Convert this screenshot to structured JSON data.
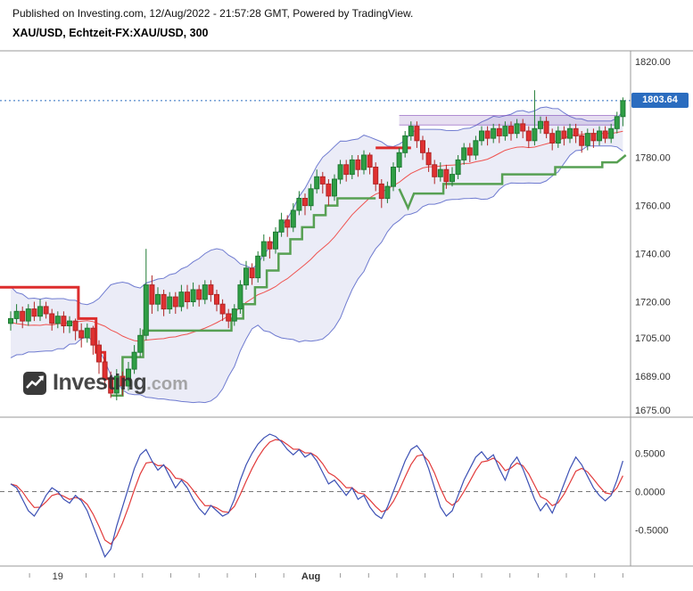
{
  "header": {
    "published_line": "Published on Investing.com, 12/Aug/2022 - 21:57:28 GMT, Powered by TradingView.",
    "symbol_line": "XAU/USD, Echtzeit-FX:XAU/USD, 300"
  },
  "watermark": {
    "brand_bold": "Investing",
    "brand_suffix": ".com"
  },
  "price_axis": {
    "last_price_label": "1803.64",
    "ticks": [
      {
        "label": "1820.00",
        "value": 1820
      },
      {
        "label": "1780.00",
        "value": 1780
      },
      {
        "label": "1760.00",
        "value": 1760
      },
      {
        "label": "1740.00",
        "value": 1740
      },
      {
        "label": "1720.00",
        "value": 1720
      },
      {
        "label": "1705.00",
        "value": 1705
      },
      {
        "label": "1689.00",
        "value": 1689
      },
      {
        "label": "1675.00",
        "value": 1675
      }
    ]
  },
  "osc_axis": {
    "ticks": [
      {
        "label": "0.5000",
        "value": 0.5
      },
      {
        "label": "0.0000",
        "value": 0.0
      },
      {
        "label": "-0.5000",
        "value": -0.5
      }
    ]
  },
  "time_axis": {
    "labels": [
      {
        "text": "19",
        "bar": 8,
        "bold": false
      },
      {
        "text": "Aug",
        "bar": 51,
        "bold": true
      }
    ],
    "first_tick_bar": 3.2,
    "minor_tick_step_bars": 4.8
  },
  "colors": {
    "up": "#2f9e45",
    "up_border": "#1e7a33",
    "down": "#e03131",
    "down_border": "#b02525",
    "band_line": "#6f7bd0",
    "band_fill": "rgba(110,118,200,0.14)",
    "band_basis": "#ef5350",
    "st_red": "#dd2c2c",
    "st_green": "#57a053",
    "osc_blue": "#3c50b4",
    "osc_red": "#e23b3b",
    "zone_fill": "rgba(120,80,180,0.18)",
    "zone_line": "rgba(120,60,180,0.55)",
    "badge": "#2a6cbf",
    "axis_line": "#9a9a9a",
    "zero_line": "#777777"
  },
  "chart_data": [
    {
      "pane": "main",
      "type": "candlestick",
      "title": "XAU/USD, Echtzeit-FX:XAU/USD, 300",
      "symbol": "XAU/USD",
      "interval_minutes": 300,
      "last_price": 1803.64,
      "ylim": [
        1672,
        1824
      ],
      "bollinger": {
        "period": 20,
        "stddev": 2
      },
      "pre_closes": [
        1722,
        1728,
        1718,
        1725,
        1712,
        1720,
        1708,
        1715,
        1703,
        1710,
        1700,
        1707,
        1698,
        1705,
        1709,
        1715,
        1707,
        1713,
        1710,
        1714
      ],
      "candles_ohlc": [
        [
          1711,
          1716,
          1708,
          1713
        ],
        [
          1713,
          1719,
          1711,
          1716
        ],
        [
          1716,
          1718,
          1709,
          1712
        ],
        [
          1712,
          1719,
          1710,
          1717
        ],
        [
          1717,
          1720,
          1712,
          1714
        ],
        [
          1714,
          1721,
          1712,
          1718
        ],
        [
          1718,
          1720,
          1713,
          1715
        ],
        [
          1715,
          1717,
          1708,
          1711
        ],
        [
          1711,
          1716,
          1709,
          1714
        ],
        [
          1714,
          1716,
          1707,
          1710
        ],
        [
          1710,
          1714,
          1707,
          1712
        ],
        [
          1712,
          1713,
          1704,
          1708
        ],
        [
          1708,
          1711,
          1701,
          1705
        ],
        [
          1705,
          1711,
          1703,
          1709
        ],
        [
          1709,
          1710,
          1698,
          1702
        ],
        [
          1702,
          1704,
          1690,
          1695
        ],
        [
          1695,
          1697,
          1684,
          1688
        ],
        [
          1688,
          1691,
          1680,
          1682
        ],
        [
          1682,
          1692,
          1679,
          1689
        ],
        [
          1689,
          1691,
          1681,
          1685
        ],
        [
          1685,
          1695,
          1683,
          1692
        ],
        [
          1692,
          1702,
          1690,
          1699
        ],
        [
          1699,
          1709,
          1697,
          1706
        ],
        [
          1706,
          1742,
          1704,
          1727
        ],
        [
          1727,
          1731,
          1715,
          1719
        ],
        [
          1719,
          1726,
          1716,
          1723
        ],
        [
          1723,
          1725,
          1714,
          1717
        ],
        [
          1717,
          1724,
          1715,
          1722
        ],
        [
          1722,
          1724,
          1715,
          1718
        ],
        [
          1718,
          1727,
          1716,
          1724
        ],
        [
          1724,
          1727,
          1717,
          1720
        ],
        [
          1720,
          1728,
          1718,
          1725
        ],
        [
          1725,
          1727,
          1718,
          1721
        ],
        [
          1721,
          1729,
          1719,
          1727
        ],
        [
          1727,
          1729,
          1720,
          1723
        ],
        [
          1723,
          1725,
          1716,
          1719
        ],
        [
          1719,
          1721,
          1712,
          1715
        ],
        [
          1715,
          1717,
          1709,
          1712
        ],
        [
          1712,
          1719,
          1710,
          1717
        ],
        [
          1717,
          1729,
          1715,
          1727
        ],
        [
          1727,
          1737,
          1725,
          1734
        ],
        [
          1734,
          1736,
          1727,
          1730
        ],
        [
          1730,
          1741,
          1728,
          1739
        ],
        [
          1739,
          1748,
          1737,
          1745
        ],
        [
          1745,
          1747,
          1738,
          1742
        ],
        [
          1742,
          1751,
          1740,
          1749
        ],
        [
          1749,
          1757,
          1747,
          1754
        ],
        [
          1754,
          1756,
          1747,
          1751
        ],
        [
          1751,
          1761,
          1749,
          1758
        ],
        [
          1758,
          1766,
          1756,
          1763
        ],
        [
          1763,
          1765,
          1756,
          1760
        ],
        [
          1760,
          1769,
          1758,
          1767
        ],
        [
          1767,
          1775,
          1765,
          1772
        ],
        [
          1772,
          1774,
          1765,
          1769
        ],
        [
          1769,
          1771,
          1760,
          1764
        ],
        [
          1764,
          1773,
          1762,
          1771
        ],
        [
          1771,
          1779,
          1769,
          1777
        ],
        [
          1777,
          1779,
          1770,
          1773
        ],
        [
          1773,
          1781,
          1771,
          1779
        ],
        [
          1779,
          1781,
          1772,
          1775
        ],
        [
          1775,
          1783,
          1773,
          1781
        ],
        [
          1781,
          1782,
          1773,
          1776
        ],
        [
          1776,
          1778,
          1766,
          1769
        ],
        [
          1769,
          1771,
          1759,
          1763
        ],
        [
          1763,
          1770,
          1761,
          1768
        ],
        [
          1768,
          1778,
          1766,
          1776
        ],
        [
          1776,
          1784,
          1774,
          1782
        ],
        [
          1782,
          1791,
          1780,
          1789
        ],
        [
          1789,
          1795,
          1787,
          1793
        ],
        [
          1793,
          1795,
          1784,
          1787
        ],
        [
          1787,
          1789,
          1779,
          1782
        ],
        [
          1782,
          1784,
          1774,
          1777
        ],
        [
          1777,
          1779,
          1769,
          1772
        ],
        [
          1772,
          1778,
          1770,
          1775
        ],
        [
          1775,
          1777,
          1767,
          1770
        ],
        [
          1770,
          1776,
          1768,
          1773
        ],
        [
          1773,
          1781,
          1771,
          1779
        ],
        [
          1779,
          1786,
          1777,
          1784
        ],
        [
          1784,
          1786,
          1778,
          1781
        ],
        [
          1781,
          1789,
          1779,
          1787
        ],
        [
          1787,
          1793,
          1785,
          1791
        ],
        [
          1791,
          1793,
          1785,
          1788
        ],
        [
          1788,
          1794,
          1786,
          1792
        ],
        [
          1792,
          1794,
          1786,
          1789
        ],
        [
          1789,
          1795,
          1787,
          1793
        ],
        [
          1793,
          1795,
          1787,
          1790
        ],
        [
          1790,
          1796,
          1788,
          1794
        ],
        [
          1794,
          1796,
          1788,
          1791
        ],
        [
          1791,
          1793,
          1784,
          1787
        ],
        [
          1787,
          1808,
          1785,
          1792
        ],
        [
          1792,
          1797,
          1790,
          1795
        ],
        [
          1795,
          1797,
          1788,
          1790
        ],
        [
          1790,
          1792,
          1783,
          1786
        ],
        [
          1786,
          1793,
          1784,
          1791
        ],
        [
          1791,
          1793,
          1785,
          1788
        ],
        [
          1788,
          1794,
          1786,
          1792
        ],
        [
          1792,
          1794,
          1786,
          1789
        ],
        [
          1789,
          1791,
          1782,
          1785
        ],
        [
          1785,
          1792,
          1783,
          1790
        ],
        [
          1790,
          1792,
          1784,
          1787
        ],
        [
          1787,
          1793,
          1785,
          1791
        ],
        [
          1791,
          1793,
          1786,
          1788
        ],
        [
          1788,
          1794,
          1786,
          1792
        ],
        [
          1792,
          1799,
          1790,
          1797
        ],
        [
          1797,
          1805,
          1793,
          1803.64
        ]
      ],
      "supertrend": {
        "red_segments": [
          {
            "points": [
              [
                -2,
                1726
              ],
              [
                11.5,
                1726
              ],
              [
                11.5,
                1713
              ],
              [
                14.5,
                1713
              ],
              [
                14.5,
                1699
              ],
              [
                16,
                1699
              ],
              [
                16,
                1688
              ],
              [
                17.5,
                1688
              ]
            ]
          },
          {
            "points": [
              [
                62,
                1784
              ],
              [
                68,
                1784
              ]
            ]
          }
        ],
        "green_segments": [
          {
            "points": [
              [
                17,
                1681
              ],
              [
                19,
                1681
              ],
              [
                19,
                1697
              ],
              [
                22.5,
                1697
              ],
              [
                22.5,
                1708
              ],
              [
                37.5,
                1708
              ],
              [
                37.5,
                1713
              ],
              [
                39.5,
                1713
              ],
              [
                39.5,
                1719
              ],
              [
                41.5,
                1719
              ],
              [
                41.5,
                1726
              ],
              [
                43.5,
                1726
              ],
              [
                43.5,
                1733
              ],
              [
                45.5,
                1733
              ],
              [
                45.5,
                1740
              ],
              [
                47.5,
                1740
              ],
              [
                47.5,
                1746
              ],
              [
                49.5,
                1746
              ],
              [
                49.5,
                1751
              ],
              [
                51.5,
                1751
              ],
              [
                51.5,
                1756
              ],
              [
                53.5,
                1756
              ],
              [
                53.5,
                1760
              ],
              [
                55.5,
                1760
              ],
              [
                55.5,
                1763
              ],
              [
                62,
                1763
              ]
            ]
          },
          {
            "points": [
              [
                66,
                1767
              ],
              [
                67.5,
                1759
              ],
              [
                68.5,
                1765
              ],
              [
                73.5,
                1765
              ],
              [
                73.5,
                1769
              ],
              [
                83.5,
                1769
              ],
              [
                83.5,
                1773
              ],
              [
                92.5,
                1773
              ],
              [
                92.5,
                1776
              ],
              [
                100.5,
                1776
              ],
              [
                100.5,
                1778
              ],
              [
                103,
                1778
              ],
              [
                104.5,
                1781
              ]
            ]
          }
        ]
      },
      "resistance_zone": {
        "from_bar": 66,
        "to_bar": 103,
        "price_low": 1793.5,
        "price_high": 1797.5
      }
    },
    {
      "pane": "oscillator",
      "type": "line",
      "ylim": [
        -0.95,
        0.95
      ],
      "zero_line_dashed": true,
      "series": [
        {
          "name": "oscillator",
          "values": [
            0.1,
            0.05,
            -0.1,
            -0.25,
            -0.32,
            -0.2,
            -0.05,
            0.05,
            0.0,
            -0.1,
            -0.15,
            -0.05,
            -0.12,
            -0.25,
            -0.45,
            -0.65,
            -0.85,
            -0.75,
            -0.45,
            -0.2,
            0.05,
            0.3,
            0.48,
            0.55,
            0.4,
            0.28,
            0.35,
            0.2,
            0.05,
            0.15,
            0.05,
            -0.1,
            -0.22,
            -0.3,
            -0.18,
            -0.25,
            -0.32,
            -0.28,
            -0.1,
            0.15,
            0.35,
            0.5,
            0.62,
            0.7,
            0.75,
            0.72,
            0.65,
            0.55,
            0.48,
            0.55,
            0.45,
            0.5,
            0.4,
            0.25,
            0.1,
            0.15,
            0.05,
            -0.05,
            0.05,
            -0.1,
            -0.05,
            -0.2,
            -0.3,
            -0.35,
            -0.2,
            0.0,
            0.2,
            0.4,
            0.55,
            0.6,
            0.5,
            0.3,
            0.05,
            -0.2,
            -0.32,
            -0.25,
            -0.05,
            0.15,
            0.3,
            0.45,
            0.52,
            0.42,
            0.48,
            0.3,
            0.15,
            0.35,
            0.45,
            0.3,
            0.1,
            -0.1,
            -0.25,
            -0.15,
            -0.28,
            -0.1,
            0.1,
            0.3,
            0.45,
            0.35,
            0.2,
            0.05,
            -0.05,
            -0.12,
            -0.05,
            0.15,
            0.4
          ]
        },
        {
          "name": "signal",
          "ema_alpha": 0.45
        }
      ]
    }
  ]
}
